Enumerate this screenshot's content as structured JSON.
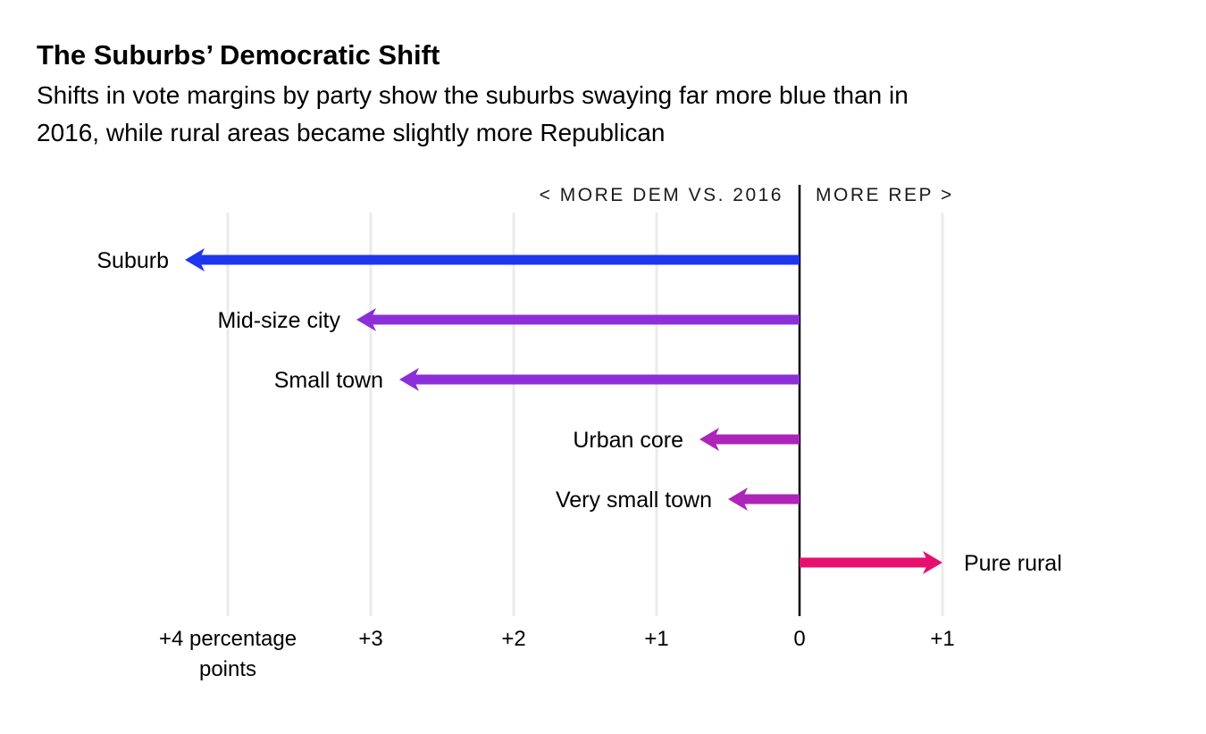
{
  "header": {
    "title": "The Suburbs’ Democratic Shift",
    "subtitle": "Shifts in vote margins by party show the suburbs swaying far more blue than in\n2016, while rural areas became slightly more Republican"
  },
  "chart_data": {
    "type": "bar",
    "subtype": "diverging-horizontal-arrows",
    "title": "The Suburbs’ Democratic Shift",
    "units": "percentage points shift in vote margin vs. 2016 (negative = more Democratic, positive = more Republican)",
    "direction_labels": {
      "left": "< MORE DEM VS. 2016",
      "right": "MORE REP >"
    },
    "categories": [
      "Suburb",
      "Mid-size city",
      "Small town",
      "Urban core",
      "Very small town",
      "Pure rural"
    ],
    "values": [
      -4.3,
      -3.1,
      -2.8,
      -0.7,
      -0.5,
      1.0
    ],
    "colors": [
      "#1f36ef",
      "#8c2fd9",
      "#8c2fd9",
      "#ac25b8",
      "#ac25b8",
      "#e8106e"
    ],
    "label_side": [
      "left",
      "left",
      "left",
      "left",
      "left",
      "right"
    ],
    "x_ticks": [
      {
        "value": -4,
        "label": "+4 percentage",
        "sublabel": "points"
      },
      {
        "value": -3,
        "label": "+3"
      },
      {
        "value": -2,
        "label": "+2"
      },
      {
        "value": -1,
        "label": "+1"
      },
      {
        "value": 0,
        "label": "0"
      },
      {
        "value": 1,
        "label": "+1"
      }
    ],
    "xlim": [
      -4.45,
      1.55
    ],
    "grid": true,
    "baseline_color": "#000000",
    "gridline_color": "#ebebeb",
    "legend_position": "none"
  }
}
